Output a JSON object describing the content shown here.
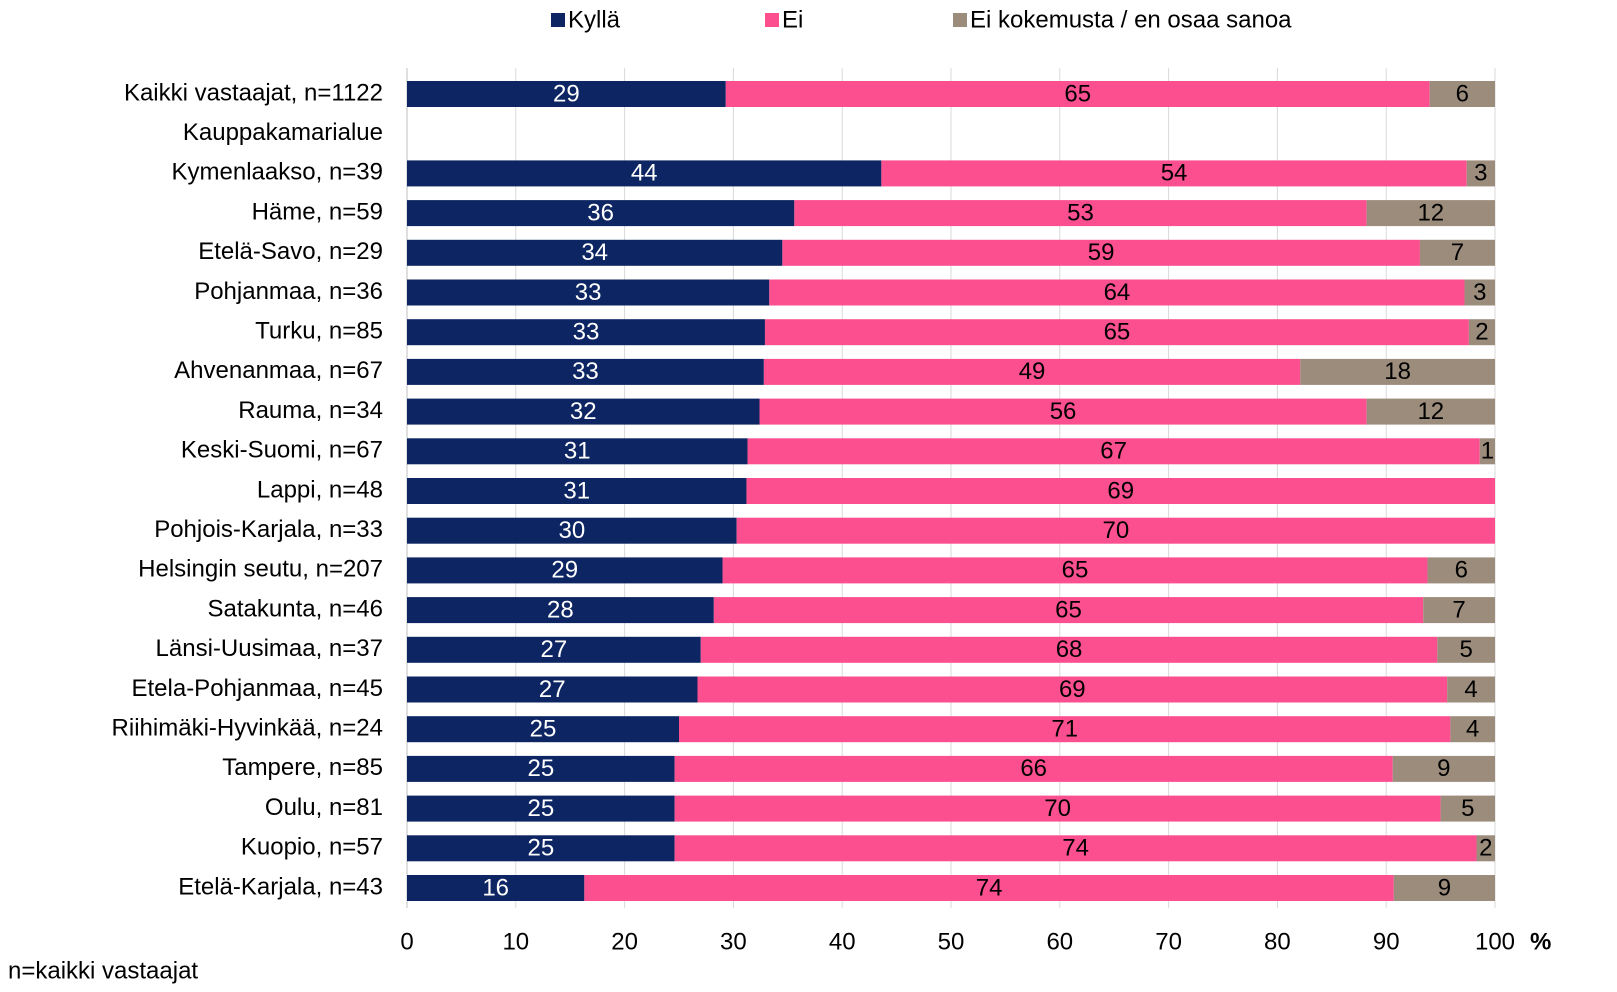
{
  "chart_data": {
    "type": "stacked-barh",
    "legend": "top",
    "note": "n=kaikki vastaajat",
    "x_label": "%",
    "categories": [
      "Kaikki vastaajat, n=1122",
      "Kauppakamarialue",
      "Kymenlaakso, n=39",
      "Häme, n=59",
      "Etelä-Savo, n=29",
      "Pohjanmaa, n=36",
      "Turku, n=85",
      "Ahvenanmaa, n=67",
      "Rauma, n=34",
      "Keski-Suomi, n=67",
      "Lappi, n=48",
      "Pohjois-Karjala, n=33",
      "Helsingin seutu, n=207",
      "Satakunta, n=46",
      "Länsi-Uusimaa, n=37",
      "Etela-Pohjanmaa, n=45",
      "Riihimäki-Hyvinkää, n=24",
      "Tampere, n=85",
      "Oulu, n=81",
      "Kuopio, n=57",
      "Etelä-Karjala, n=43"
    ],
    "series": [
      {
        "name": "Kyllä",
        "color": "#0d2562",
        "label_color": "#ffffff",
        "values": [
          29.3,
          null,
          43.6,
          35.6,
          34.5,
          33.3,
          32.9,
          32.8,
          32.4,
          31.3,
          31.2,
          30.3,
          29.0,
          28.2,
          27.0,
          26.7,
          25.0,
          24.6,
          24.6,
          24.6,
          16.3
        ],
        "value_labels": [
          "29",
          null,
          "44",
          "36",
          "34",
          "33",
          "33",
          "33",
          "32",
          "31",
          "31",
          "30",
          "29",
          "28",
          "27",
          "27",
          "25",
          "25",
          "25",
          "25",
          "16"
        ]
      },
      {
        "name": "Ei",
        "color": "#fb4f8f",
        "label_color": "#000000",
        "values": [
          64.7,
          null,
          53.8,
          52.6,
          58.6,
          63.9,
          64.7,
          49.3,
          55.8,
          67.3,
          68.8,
          69.7,
          64.8,
          65.2,
          67.7,
          68.9,
          70.9,
          66.0,
          70.4,
          73.7,
          74.4
        ],
        "value_labels": [
          "65",
          null,
          "54",
          "53",
          "59",
          "64",
          "65",
          "49",
          "56",
          "67",
          "69",
          "70",
          "65",
          "65",
          "68",
          "69",
          "71",
          "66",
          "70",
          "74",
          "74"
        ]
      },
      {
        "name": "Ei kokemusta / en osaa sanoa",
        "color": "#9c8c7c",
        "label_color": "#000000",
        "values": [
          6.0,
          null,
          2.6,
          11.8,
          6.9,
          2.8,
          2.4,
          17.9,
          11.8,
          1.4,
          null,
          null,
          6.2,
          6.6,
          5.3,
          4.4,
          4.1,
          9.4,
          5.0,
          1.7,
          9.3
        ],
        "value_labels": [
          "6",
          null,
          "3",
          "12",
          "7",
          "3",
          "2",
          "18",
          "12",
          "1",
          null,
          null,
          "6",
          "7",
          "5",
          "4",
          "4",
          "9",
          "5",
          "2",
          "9"
        ]
      }
    ],
    "xlim": [
      0,
      100
    ],
    "xticks": [
      0,
      10,
      20,
      30,
      40,
      50,
      60,
      70,
      80,
      90,
      100
    ],
    "grid": true
  }
}
